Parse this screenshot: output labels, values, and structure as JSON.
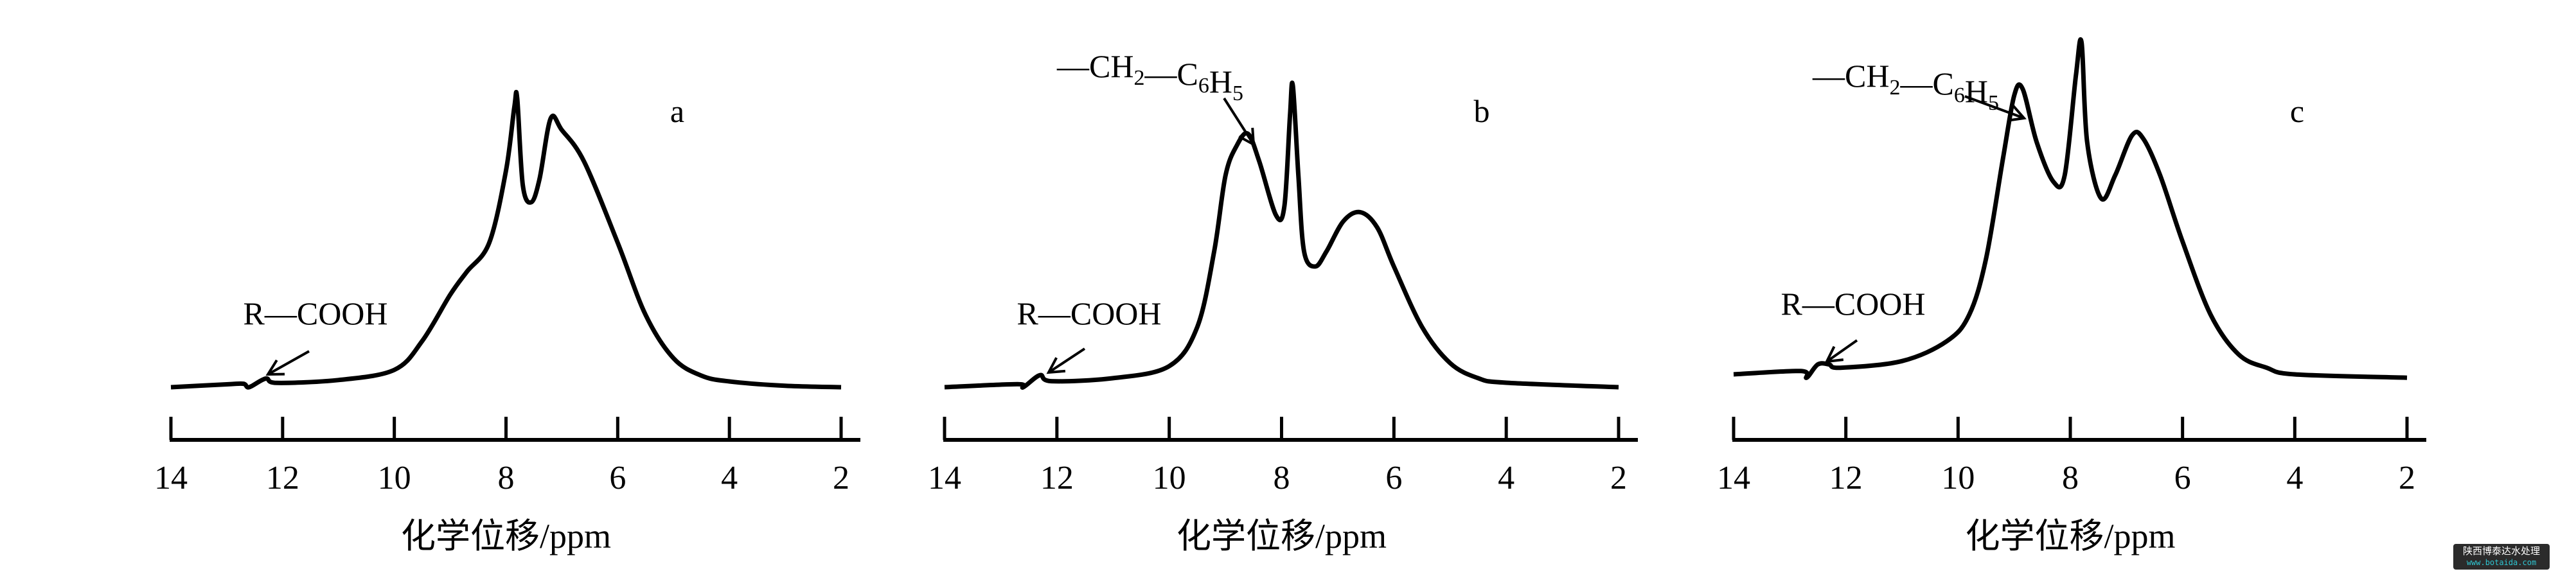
{
  "chart_data": [
    {
      "type": "line",
      "panel_label": "a",
      "xlabel": "化学位移/ppm",
      "xlim": [
        14,
        2
      ],
      "x_reversed": true,
      "x_ticks": [
        "14",
        "12",
        "10",
        "8",
        "6",
        "4",
        "2"
      ],
      "y_axis_shown": false,
      "grid": false,
      "annotations": [
        {
          "text": "R—COOH",
          "ppm": 12.3
        }
      ],
      "series": [
        {
          "points": [
            [
              14,
              0
            ],
            [
              13,
              0.01
            ],
            [
              12.7,
              0.012
            ],
            [
              12.6,
              0
            ],
            [
              12.3,
              0.03
            ],
            [
              12.1,
              0.015
            ],
            [
              11,
              0.025
            ],
            [
              10,
              0.06
            ],
            [
              9.5,
              0.16
            ],
            [
              9,
              0.32
            ],
            [
              8.7,
              0.4
            ],
            [
              8.3,
              0.5
            ],
            [
              8.0,
              0.75
            ],
            [
              7.85,
              0.97
            ],
            [
              7.8,
              1.0
            ],
            [
              7.7,
              0.7
            ],
            [
              7.55,
              0.64
            ],
            [
              7.4,
              0.72
            ],
            [
              7.2,
              0.93
            ],
            [
              7.0,
              0.89
            ],
            [
              6.6,
              0.78
            ],
            [
              6.0,
              0.5
            ],
            [
              5.5,
              0.25
            ],
            [
              5.0,
              0.1
            ],
            [
              4.5,
              0.04
            ],
            [
              4,
              0.02
            ],
            [
              3,
              0.005
            ],
            [
              2,
              0
            ]
          ]
        }
      ]
    },
    {
      "type": "line",
      "panel_label": "b",
      "xlabel": "化学位移/ppm",
      "xlim": [
        14,
        2
      ],
      "x_reversed": true,
      "x_ticks": [
        "14",
        "12",
        "10",
        "8",
        "6",
        "4",
        "2"
      ],
      "y_axis_shown": false,
      "grid": false,
      "annotations": [
        {
          "text": "R—COOH",
          "ppm": 12.3
        },
        {
          "text": "—CH2—C6H5",
          "ppm": 8.6
        }
      ],
      "series": [
        {
          "points": [
            [
              14,
              0
            ],
            [
              12.7,
              0.01
            ],
            [
              12.6,
              0
            ],
            [
              12.3,
              0.04
            ],
            [
              12.1,
              0.02
            ],
            [
              11,
              0.03
            ],
            [
              10,
              0.07
            ],
            [
              9.5,
              0.2
            ],
            [
              9.2,
              0.45
            ],
            [
              9.0,
              0.7
            ],
            [
              8.8,
              0.8
            ],
            [
              8.6,
              0.84
            ],
            [
              8.4,
              0.75
            ],
            [
              8.1,
              0.57
            ],
            [
              7.95,
              0.6
            ],
            [
              7.85,
              0.9
            ],
            [
              7.8,
              1.0
            ],
            [
              7.7,
              0.7
            ],
            [
              7.6,
              0.45
            ],
            [
              7.4,
              0.4
            ],
            [
              7.2,
              0.45
            ],
            [
              6.9,
              0.55
            ],
            [
              6.6,
              0.58
            ],
            [
              6.3,
              0.53
            ],
            [
              6,
              0.4
            ],
            [
              5.5,
              0.2
            ],
            [
              5,
              0.08
            ],
            [
              4.5,
              0.03
            ],
            [
              4,
              0.015
            ],
            [
              2,
              0
            ]
          ]
        }
      ]
    },
    {
      "type": "line",
      "panel_label": "c",
      "xlabel": "化学位移/ppm",
      "xlim": [
        14,
        2
      ],
      "x_reversed": true,
      "x_ticks": [
        "14",
        "12",
        "10",
        "8",
        "6",
        "4",
        "2"
      ],
      "y_axis_shown": false,
      "grid": false,
      "annotations": [
        {
          "text": "R—COOH",
          "ppm": 12.3
        },
        {
          "text": "—CH2—C6H5",
          "ppm": 8.85
        }
      ],
      "series": [
        {
          "points": [
            [
              14,
              0
            ],
            [
              12.8,
              0.01
            ],
            [
              12.7,
              -0.01
            ],
            [
              12.5,
              0.03
            ],
            [
              12.3,
              0.03
            ],
            [
              12.1,
              0.02
            ],
            [
              11,
              0.04
            ],
            [
              10.2,
              0.1
            ],
            [
              9.8,
              0.18
            ],
            [
              9.5,
              0.35
            ],
            [
              9.2,
              0.65
            ],
            [
              9.0,
              0.84
            ],
            [
              8.85,
              0.86
            ],
            [
              8.6,
              0.7
            ],
            [
              8.3,
              0.58
            ],
            [
              8.1,
              0.6
            ],
            [
              7.9,
              0.9
            ],
            [
              7.8,
              1.0
            ],
            [
              7.7,
              0.7
            ],
            [
              7.45,
              0.53
            ],
            [
              7.2,
              0.6
            ],
            [
              6.9,
              0.72
            ],
            [
              6.7,
              0.71
            ],
            [
              6.4,
              0.6
            ],
            [
              6.0,
              0.4
            ],
            [
              5.5,
              0.18
            ],
            [
              5.0,
              0.06
            ],
            [
              4.5,
              0.02
            ],
            [
              4,
              0
            ],
            [
              2,
              -0.01
            ]
          ]
        }
      ]
    }
  ],
  "watermark": {
    "line1": "陕西博泰达水处理",
    "line2": "www.botaida.com"
  }
}
